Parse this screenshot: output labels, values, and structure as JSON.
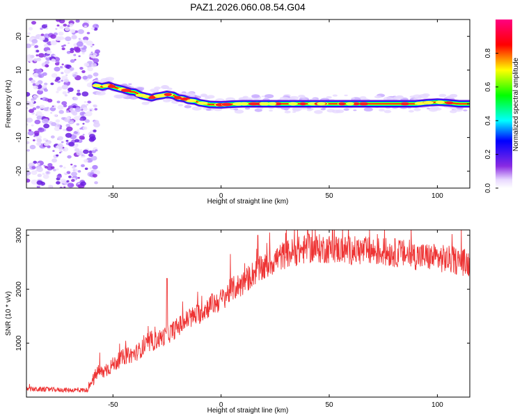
{
  "title": "PAZ1.2026.060.08.54.G04",
  "chart_data": [
    {
      "type": "heatmap",
      "title": "PAZ1.2026.060.08.54.G04",
      "xlabel": "Height of straight line (km)",
      "ylabel": "Frequency (Hz)",
      "xlim": [
        -90,
        115
      ],
      "ylim": [
        -25,
        25
      ],
      "xticks": [
        "-50",
        "0",
        "50",
        "100"
      ],
      "xtick_values": [
        -50,
        0,
        50,
        100
      ],
      "yticks": [
        "-20",
        "-10",
        "0",
        "10",
        "20"
      ],
      "ytick_values": [
        -20,
        -10,
        0,
        10,
        20
      ],
      "noise_region_x": [
        -90,
        -60
      ],
      "signal_trace": {
        "x": [
          -58,
          -55,
          -52,
          -50,
          -47,
          -45,
          -42,
          -40,
          -37,
          -35,
          -32,
          -30,
          -27,
          -25,
          -22,
          -20,
          -17,
          -15,
          -12,
          -10,
          -7,
          -5,
          0,
          5,
          10,
          15,
          20,
          30,
          40,
          50,
          60,
          70,
          80,
          90,
          95,
          100,
          105,
          110,
          115
        ],
        "y": [
          5.5,
          5.0,
          5.5,
          5.0,
          4.5,
          4.2,
          3.6,
          3.5,
          2.5,
          2.2,
          1.8,
          2.2,
          2.5,
          2.8,
          2.5,
          1.8,
          1.5,
          1.0,
          0.8,
          0.3,
          0.0,
          -0.2,
          -0.3,
          -0.1,
          0.0,
          0.0,
          0.0,
          0.0,
          0.0,
          0.0,
          0.0,
          0.0,
          0.0,
          0.0,
          0.3,
          0.5,
          0.3,
          0.0,
          0.0
        ]
      },
      "colorbar": {
        "label": "Normalized spectral amplitude",
        "range": [
          0,
          1
        ],
        "ticks": [
          "0.0",
          "0.2",
          "0.4",
          "0.6",
          "0.8"
        ],
        "tick_values": [
          0.0,
          0.2,
          0.4,
          0.6,
          0.8
        ],
        "colors": [
          "#ffffff",
          "#8a2be2",
          "#0000ff",
          "#00ffff",
          "#00ff00",
          "#ffff00",
          "#ff0000",
          "#ff0080"
        ]
      }
    },
    {
      "type": "line",
      "xlabel": "Height of straight line (km)",
      "ylabel": "SNR (10 * v/v)",
      "xlim": [
        -90,
        115
      ],
      "ylim": [
        0,
        3100
      ],
      "xticks": [
        "-50",
        "0",
        "50",
        "100"
      ],
      "xtick_values": [
        -50,
        0,
        50,
        100
      ],
      "yticks": [
        "1000",
        "2000",
        "3000"
      ],
      "ytick_values": [
        1000,
        2000,
        3000
      ],
      "color": "#ee3333",
      "x": [
        -90,
        -80,
        -70,
        -62,
        -60,
        -57,
        -55,
        -50,
        -45,
        -40,
        -35,
        -30,
        -25,
        -20,
        -15,
        -10,
        -5,
        0,
        5,
        10,
        15,
        20,
        25,
        30,
        35,
        40,
        50,
        60,
        70,
        80,
        90,
        100,
        110,
        115
      ],
      "y": [
        150,
        140,
        130,
        130,
        250,
        480,
        450,
        600,
        750,
        800,
        950,
        1050,
        1150,
        1300,
        1450,
        1550,
        1700,
        1800,
        2000,
        2100,
        2300,
        2400,
        2550,
        2650,
        2700,
        2750,
        2750,
        2720,
        2700,
        2680,
        2620,
        2580,
        2520,
        2480
      ],
      "spikes": [
        {
          "x": -25,
          "y": 2200
        },
        {
          "x": 17,
          "y": 3000
        },
        {
          "x": 40,
          "y": 3100
        }
      ]
    }
  ]
}
